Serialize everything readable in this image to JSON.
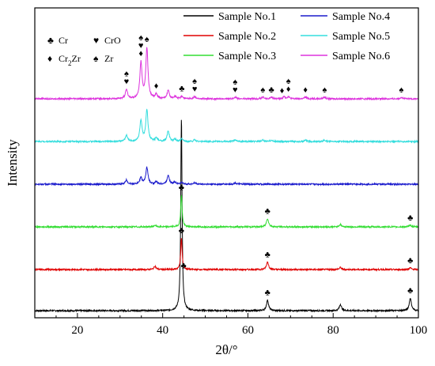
{
  "chart_data": {
    "type": "line",
    "title": "",
    "xlabel": "2θ/°",
    "ylabel": "Intensity",
    "xlim": [
      10,
      100
    ],
    "x_ticks": [
      20,
      40,
      60,
      80,
      100
    ],
    "grid": false,
    "legend_position": "top-right",
    "series": [
      {
        "name": "Sample No.1",
        "color": "#000000",
        "baseline": 0.0,
        "peaks": [
          {
            "x": 44.4,
            "h": 4.6,
            "w": 0.18
          },
          {
            "x": 64.6,
            "h": 0.25,
            "w": 0.3
          },
          {
            "x": 81.7,
            "h": 0.15,
            "w": 0.3
          },
          {
            "x": 98.1,
            "h": 0.3,
            "w": 0.3
          }
        ]
      },
      {
        "name": "Sample No.2",
        "color": "#e00000",
        "baseline": 1.0,
        "peaks": [
          {
            "x": 44.4,
            "h": 0.75,
            "w": 0.2
          },
          {
            "x": 38.2,
            "h": 0.08,
            "w": 0.3
          },
          {
            "x": 64.6,
            "h": 0.18,
            "w": 0.3
          },
          {
            "x": 81.7,
            "h": 0.05,
            "w": 0.3
          },
          {
            "x": 98.1,
            "h": 0.04,
            "w": 0.3
          }
        ]
      },
      {
        "name": "Sample No.3",
        "color": "#33dd33",
        "baseline": 2.0,
        "peaks": [
          {
            "x": 44.4,
            "h": 0.76,
            "w": 0.2
          },
          {
            "x": 38.2,
            "h": 0.04,
            "w": 0.3
          },
          {
            "x": 64.6,
            "h": 0.2,
            "w": 0.3
          },
          {
            "x": 81.7,
            "h": 0.06,
            "w": 0.3
          },
          {
            "x": 98.1,
            "h": 0.04,
            "w": 0.3
          }
        ]
      },
      {
        "name": "Sample No.4",
        "color": "#1a1acc",
        "baseline": 3.0,
        "peaks": [
          {
            "x": 31.5,
            "h": 0.1,
            "w": 0.3
          },
          {
            "x": 34.9,
            "h": 0.16,
            "w": 0.3
          },
          {
            "x": 36.3,
            "h": 0.4,
            "w": 0.3
          },
          {
            "x": 38.5,
            "h": 0.06,
            "w": 0.3
          },
          {
            "x": 41.3,
            "h": 0.22,
            "w": 0.3
          },
          {
            "x": 42.9,
            "h": 0.05,
            "w": 0.3
          },
          {
            "x": 44.5,
            "h": 0.04,
            "w": 0.3
          },
          {
            "x": 47.5,
            "h": 0.03,
            "w": 0.3
          },
          {
            "x": 57.0,
            "h": 0.03,
            "w": 0.3
          }
        ]
      },
      {
        "name": "Sample No.5",
        "color": "#33dddd",
        "baseline": 4.0,
        "peaks": [
          {
            "x": 31.5,
            "h": 0.15,
            "w": 0.3
          },
          {
            "x": 34.9,
            "h": 0.5,
            "w": 0.3
          },
          {
            "x": 36.3,
            "h": 0.75,
            "w": 0.3
          },
          {
            "x": 38.5,
            "h": 0.08,
            "w": 0.3
          },
          {
            "x": 41.3,
            "h": 0.25,
            "w": 0.3
          },
          {
            "x": 42.9,
            "h": 0.05,
            "w": 0.3
          },
          {
            "x": 44.5,
            "h": 0.06,
            "w": 0.3
          },
          {
            "x": 47.5,
            "h": 0.04,
            "w": 0.3
          },
          {
            "x": 57.0,
            "h": 0.04,
            "w": 0.3
          },
          {
            "x": 63.5,
            "h": 0.03,
            "w": 0.3
          },
          {
            "x": 65.5,
            "h": 0.03,
            "w": 0.3
          },
          {
            "x": 73.5,
            "h": 0.03,
            "w": 0.3
          },
          {
            "x": 78.0,
            "h": 0.03,
            "w": 0.3
          }
        ]
      },
      {
        "name": "Sample No.6",
        "color": "#dd33dd",
        "baseline": 5.0,
        "peaks": [
          {
            "x": 31.5,
            "h": 0.22,
            "w": 0.3
          },
          {
            "x": 34.9,
            "h": 0.85,
            "w": 0.3
          },
          {
            "x": 36.3,
            "h": 1.2,
            "w": 0.3
          },
          {
            "x": 38.5,
            "h": 0.1,
            "w": 0.3
          },
          {
            "x": 41.3,
            "h": 0.2,
            "w": 0.3
          },
          {
            "x": 42.9,
            "h": 0.05,
            "w": 0.3
          },
          {
            "x": 44.5,
            "h": 0.06,
            "w": 0.3
          },
          {
            "x": 47.5,
            "h": 0.05,
            "w": 0.3
          },
          {
            "x": 57.0,
            "h": 0.04,
            "w": 0.3
          },
          {
            "x": 63.5,
            "h": 0.04,
            "w": 0.3
          },
          {
            "x": 65.5,
            "h": 0.04,
            "w": 0.3
          },
          {
            "x": 68.5,
            "h": 0.05,
            "w": 0.3
          },
          {
            "x": 69.5,
            "h": 0.05,
            "w": 0.3
          },
          {
            "x": 73.5,
            "h": 0.04,
            "w": 0.3
          },
          {
            "x": 78.0,
            "h": 0.04,
            "w": 0.3
          },
          {
            "x": 96.0,
            "h": 0.04,
            "w": 0.3
          }
        ]
      }
    ],
    "phase_legend": [
      {
        "symbol": "♣",
        "label": "Cr"
      },
      {
        "symbol": "♥",
        "label": "CrO"
      },
      {
        "symbol": "♦",
        "label": "Cr",
        "sub": "2",
        "suffix": "Zr"
      },
      {
        "symbol": "♠",
        "label": "Zr"
      }
    ],
    "annotations": [
      {
        "series": 0,
        "x": 44.9,
        "marks": [
          "♣"
        ],
        "offset": 0.9
      },
      {
        "series": 0,
        "x": 64.6,
        "marks": [
          "♣"
        ]
      },
      {
        "series": 0,
        "x": 98.1,
        "marks": [
          "♣"
        ]
      },
      {
        "series": 1,
        "x": 44.4,
        "marks": [
          "♣"
        ]
      },
      {
        "series": 1,
        "x": 64.6,
        "marks": [
          "♣"
        ]
      },
      {
        "series": 1,
        "x": 98.1,
        "marks": [
          "♣"
        ]
      },
      {
        "series": 2,
        "x": 44.4,
        "marks": [
          "♣"
        ]
      },
      {
        "series": 2,
        "x": 64.6,
        "marks": [
          "♣"
        ]
      },
      {
        "series": 2,
        "x": 98.1,
        "marks": [
          "♣"
        ]
      },
      {
        "series": 5,
        "x": 31.5,
        "marks": [
          "♠",
          "♥"
        ]
      },
      {
        "series": 5,
        "x": 34.9,
        "marks": [
          "♠",
          "♥",
          "♦"
        ]
      },
      {
        "series": 5,
        "x": 36.3,
        "marks": [
          "♠"
        ]
      },
      {
        "series": 5,
        "x": 38.5,
        "marks": [
          "♦"
        ]
      },
      {
        "series": 5,
        "x": 44.5,
        "marks": [
          "♣"
        ]
      },
      {
        "series": 5,
        "x": 47.5,
        "marks": [
          "♠",
          "♥"
        ]
      },
      {
        "series": 5,
        "x": 57.0,
        "marks": [
          "♠",
          "♥"
        ]
      },
      {
        "series": 5,
        "x": 63.5,
        "marks": [
          "♠"
        ]
      },
      {
        "series": 5,
        "x": 65.5,
        "marks": [
          "♣"
        ]
      },
      {
        "series": 5,
        "x": 68.0,
        "marks": [
          "♦"
        ]
      },
      {
        "series": 5,
        "x": 69.5,
        "marks": [
          "♠",
          "♦"
        ]
      },
      {
        "series": 5,
        "x": 73.5,
        "marks": [
          "♦"
        ]
      },
      {
        "series": 5,
        "x": 78.0,
        "marks": [
          "♠"
        ]
      },
      {
        "series": 5,
        "x": 96.0,
        "marks": [
          "♠"
        ]
      }
    ]
  }
}
